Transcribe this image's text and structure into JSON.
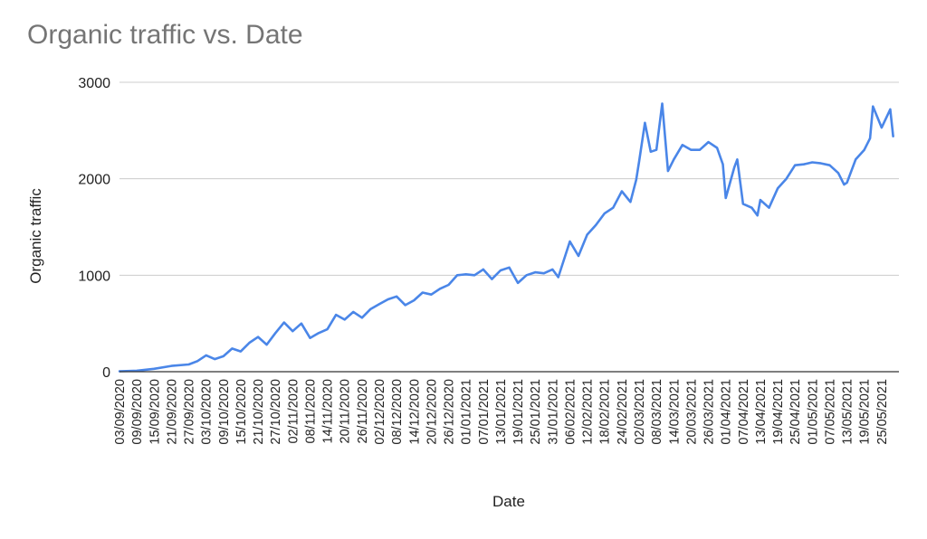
{
  "chart_data": {
    "type": "line",
    "title": "Organic traffic vs. Date",
    "xlabel": "Date",
    "ylabel": "Organic traffic",
    "ylim": [
      0,
      3000
    ],
    "yticks": [
      0,
      1000,
      2000,
      3000
    ],
    "grid": true,
    "legend": "none",
    "color": "#4a86e8",
    "xtick_labels": [
      "03/09/2020",
      "09/09/2020",
      "15/09/2020",
      "21/09/2020",
      "27/09/2020",
      "03/10/2020",
      "09/10/2020",
      "15/10/2020",
      "21/10/2020",
      "27/10/2020",
      "02/11/2020",
      "08/11/2020",
      "14/11/2020",
      "20/11/2020",
      "26/11/2020",
      "02/12/2020",
      "08/12/2020",
      "14/12/2020",
      "20/12/2020",
      "26/12/2020",
      "01/01/2021",
      "07/01/2021",
      "13/01/2021",
      "19/01/2021",
      "25/01/2021",
      "31/01/2021",
      "06/02/2021",
      "12/02/2021",
      "18/02/2021",
      "24/02/2021",
      "02/03/2021",
      "08/03/2021",
      "14/03/2021",
      "20/03/2021",
      "26/03/2021",
      "01/04/2021",
      "07/04/2021",
      "13/04/2021",
      "19/04/2021",
      "25/04/2021",
      "01/05/2021",
      "07/05/2021",
      "13/05/2021",
      "19/05/2021",
      "25/05/2021"
    ],
    "series": [
      {
        "x": [
          "03/09/2020",
          "09/09/2020",
          "15/09/2020",
          "21/09/2020",
          "27/09/2020",
          "30/09/2020",
          "03/10/2020",
          "06/10/2020",
          "09/10/2020",
          "12/10/2020",
          "15/10/2020",
          "18/10/2020",
          "21/10/2020",
          "24/10/2020",
          "27/10/2020",
          "30/10/2020",
          "02/11/2020",
          "05/11/2020",
          "08/11/2020",
          "11/11/2020",
          "14/11/2020",
          "17/11/2020",
          "20/11/2020",
          "23/11/2020",
          "26/11/2020",
          "29/11/2020",
          "02/12/2020",
          "05/12/2020",
          "08/12/2020",
          "11/12/2020",
          "14/12/2020",
          "17/12/2020",
          "20/12/2020",
          "23/12/2020",
          "26/12/2020",
          "29/12/2020",
          "01/01/2021",
          "04/01/2021",
          "07/01/2021",
          "10/01/2021",
          "13/01/2021",
          "16/01/2021",
          "19/01/2021",
          "22/01/2021",
          "25/01/2021",
          "28/01/2021",
          "31/01/2021",
          "02/02/2021",
          "06/02/2021",
          "09/02/2021",
          "12/02/2021",
          "15/02/2021",
          "18/02/2021",
          "21/02/2021",
          "24/02/2021",
          "27/02/2021",
          "01/03/2021",
          "02/03/2021",
          "04/03/2021",
          "06/03/2021",
          "08/03/2021",
          "10/03/2021",
          "12/03/2021",
          "14/03/2021",
          "17/03/2021",
          "20/03/2021",
          "23/03/2021",
          "26/03/2021",
          "29/03/2021",
          "31/03/2021",
          "01/04/2021",
          "04/04/2021",
          "05/04/2021",
          "07/04/2021",
          "10/04/2021",
          "12/04/2021",
          "13/04/2021",
          "16/04/2021",
          "19/04/2021",
          "22/04/2021",
          "25/04/2021",
          "28/04/2021",
          "01/05/2021",
          "04/05/2021",
          "07/05/2021",
          "10/05/2021",
          "12/05/2021",
          "13/05/2021",
          "16/05/2021",
          "19/05/2021",
          "21/05/2021",
          "22/05/2021",
          "25/05/2021",
          "28/05/2021",
          "29/05/2021"
        ],
        "values": [
          5,
          10,
          30,
          60,
          75,
          110,
          170,
          130,
          160,
          240,
          210,
          300,
          360,
          280,
          400,
          510,
          420,
          500,
          350,
          400,
          440,
          590,
          540,
          620,
          560,
          650,
          700,
          750,
          780,
          690,
          740,
          820,
          800,
          860,
          900,
          1000,
          1010,
          1000,
          1060,
          960,
          1050,
          1080,
          920,
          1000,
          1030,
          1020,
          1060,
          980,
          1350,
          1200,
          1420,
          1520,
          1640,
          1700,
          1870,
          1760,
          1990,
          2180,
          2580,
          2280,
          2300,
          2780,
          2080,
          2200,
          2350,
          2300,
          2300,
          2380,
          2320,
          2150,
          1800,
          2120,
          2200,
          1740,
          1700,
          1620,
          1780,
          1700,
          1900,
          2000,
          2140,
          2150,
          2170,
          2160,
          2140,
          2060,
          1940,
          1960,
          2200,
          2300,
          2420,
          2750,
          2530,
          2720,
          2440
        ]
      }
    ]
  }
}
